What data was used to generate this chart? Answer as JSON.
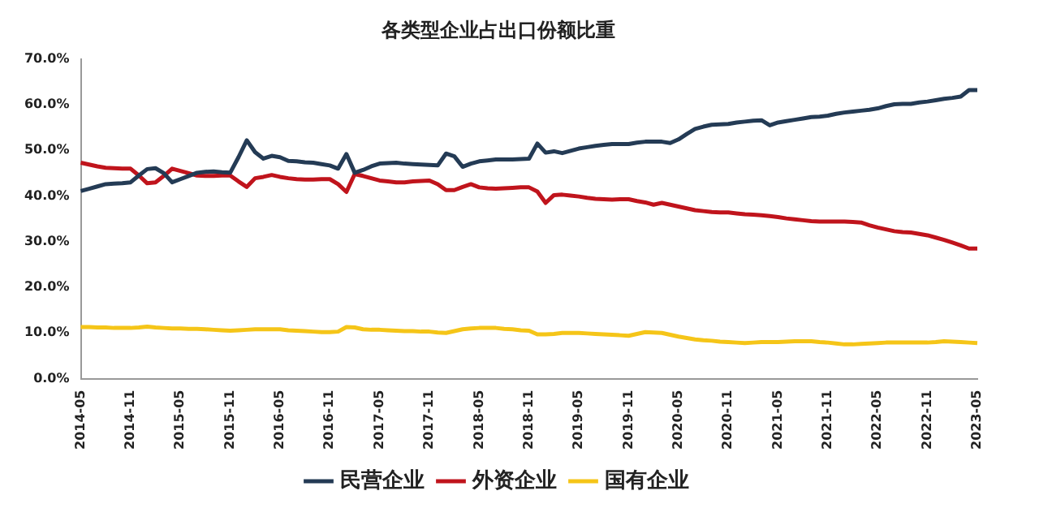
{
  "chart_data": {
    "type": "line",
    "title": "各类型企业占出口份额比重",
    "categories": [
      "2014-05",
      null,
      null,
      null,
      null,
      null,
      "2014-11",
      null,
      null,
      null,
      null,
      null,
      "2015-05",
      null,
      null,
      null,
      null,
      null,
      "2015-11",
      null,
      null,
      null,
      null,
      null,
      "2016-05",
      null,
      null,
      null,
      null,
      null,
      "2016-11",
      null,
      null,
      null,
      null,
      null,
      "2017-05",
      null,
      null,
      null,
      null,
      null,
      "2017-11",
      null,
      null,
      null,
      null,
      null,
      "2018-05",
      null,
      null,
      null,
      null,
      null,
      "2018-11",
      null,
      null,
      null,
      null,
      null,
      "2019-05",
      null,
      null,
      null,
      null,
      null,
      "2019-11",
      null,
      null,
      null,
      null,
      null,
      "2020-05",
      null,
      null,
      null,
      null,
      null,
      "2020-11",
      null,
      null,
      null,
      null,
      null,
      "2021-05",
      null,
      null,
      null,
      null,
      null,
      "2021-11",
      null,
      null,
      null,
      null,
      null,
      "2022-05",
      null,
      null,
      null,
      null,
      null,
      "2022-11",
      null,
      null,
      null,
      null,
      null,
      "2023-05"
    ],
    "series": [
      {
        "name": "民营企业",
        "color": "#243b55",
        "values": [
          41.1,
          41.6,
          42.1,
          42.6,
          42.7,
          42.8,
          43.0,
          44.5,
          45.9,
          46.1,
          45.0,
          43.0,
          43.7,
          44.4,
          45.1,
          45.3,
          45.4,
          45.2,
          45.1,
          48.5,
          52.2,
          49.6,
          48.2,
          48.8,
          48.5,
          47.7,
          47.6,
          47.4,
          47.3,
          47.0,
          46.7,
          46.0,
          49.2,
          45.1,
          45.7,
          46.5,
          47.1,
          47.2,
          47.3,
          47.1,
          47.0,
          46.9,
          46.8,
          46.7,
          49.3,
          48.7,
          46.4,
          47.1,
          47.6,
          47.8,
          48.0,
          48.0,
          48.0,
          48.1,
          48.2,
          51.5,
          49.5,
          49.8,
          49.4,
          49.9,
          50.4,
          50.7,
          51.0,
          51.2,
          51.4,
          51.4,
          51.4,
          51.7,
          51.9,
          51.9,
          51.9,
          51.6,
          52.4,
          53.6,
          54.7,
          55.2,
          55.6,
          55.7,
          55.8,
          56.1,
          56.3,
          56.5,
          56.6,
          55.5,
          56.1,
          56.4,
          56.7,
          57.0,
          57.3,
          57.4,
          57.6,
          58.0,
          58.3,
          58.5,
          58.7,
          58.9,
          59.2,
          59.7,
          60.1,
          60.2,
          60.2,
          60.5,
          60.7,
          61.0,
          61.3,
          61.5,
          61.8,
          63.2,
          63.2
        ]
      },
      {
        "name": "外资企业",
        "color": "#c0141c",
        "values": [
          47.3,
          46.9,
          46.5,
          46.2,
          46.1,
          46.0,
          46.0,
          44.5,
          42.8,
          43.0,
          44.4,
          46.0,
          45.5,
          45.0,
          44.5,
          44.4,
          44.4,
          44.5,
          44.5,
          43.2,
          42.0,
          43.9,
          44.2,
          44.6,
          44.2,
          43.9,
          43.7,
          43.6,
          43.6,
          43.7,
          43.7,
          42.6,
          40.9,
          44.8,
          44.4,
          43.9,
          43.4,
          43.2,
          43.0,
          43.0,
          43.2,
          43.3,
          43.4,
          42.6,
          41.3,
          41.3,
          42.0,
          42.6,
          41.9,
          41.7,
          41.6,
          41.7,
          41.8,
          41.9,
          41.9,
          41.0,
          38.5,
          40.2,
          40.3,
          40.1,
          39.9,
          39.6,
          39.4,
          39.3,
          39.2,
          39.3,
          39.3,
          38.9,
          38.6,
          38.1,
          38.5,
          38.1,
          37.7,
          37.3,
          36.9,
          36.7,
          36.5,
          36.4,
          36.4,
          36.2,
          36.0,
          35.9,
          35.8,
          35.6,
          35.4,
          35.1,
          34.9,
          34.7,
          34.5,
          34.4,
          34.4,
          34.4,
          34.4,
          34.3,
          34.2,
          33.6,
          33.1,
          32.7,
          32.3,
          32.1,
          32.0,
          31.7,
          31.4,
          30.9,
          30.4,
          29.8,
          29.2,
          28.5,
          28.5
        ]
      },
      {
        "name": "国有企业",
        "color": "#f5c518",
        "values": [
          11.3,
          11.3,
          11.2,
          11.2,
          11.1,
          11.1,
          11.1,
          11.2,
          11.4,
          11.2,
          11.1,
          11.0,
          11.0,
          10.9,
          10.9,
          10.8,
          10.7,
          10.6,
          10.5,
          10.6,
          10.7,
          10.8,
          10.8,
          10.8,
          10.8,
          10.6,
          10.5,
          10.4,
          10.3,
          10.2,
          10.2,
          10.3,
          11.3,
          11.2,
          10.8,
          10.7,
          10.7,
          10.6,
          10.5,
          10.4,
          10.4,
          10.3,
          10.3,
          10.1,
          10.0,
          10.4,
          10.8,
          11.0,
          11.1,
          11.1,
          11.1,
          10.9,
          10.8,
          10.6,
          10.5,
          9.7,
          9.7,
          9.8,
          10.0,
          10.0,
          10.0,
          9.9,
          9.8,
          9.7,
          9.6,
          9.5,
          9.4,
          9.8,
          10.2,
          10.1,
          10.0,
          9.6,
          9.2,
          8.9,
          8.6,
          8.4,
          8.3,
          8.1,
          8.0,
          7.9,
          7.8,
          7.9,
          8.0,
          8.0,
          8.0,
          8.1,
          8.2,
          8.2,
          8.2,
          8.0,
          7.9,
          7.7,
          7.5,
          7.5,
          7.6,
          7.7,
          7.8,
          7.9,
          7.9,
          7.9,
          7.9,
          7.9,
          7.9,
          8.0,
          8.2,
          8.1,
          8.0,
          7.9,
          7.8
        ]
      }
    ],
    "ylim": [
      0,
      70
    ],
    "yticks": [
      {
        "value": 0,
        "label": "0.0%"
      },
      {
        "value": 10,
        "label": "10.0%"
      },
      {
        "value": 20,
        "label": "20.0%"
      },
      {
        "value": 30,
        "label": "30.0%"
      },
      {
        "value": 40,
        "label": "40.0%"
      },
      {
        "value": 50,
        "label": "50.0%"
      },
      {
        "value": 60,
        "label": "60.0%"
      },
      {
        "value": 70,
        "label": "70.0%"
      }
    ],
    "grid": false,
    "legend": "bottom",
    "marker": "none",
    "line_style": "solid"
  }
}
